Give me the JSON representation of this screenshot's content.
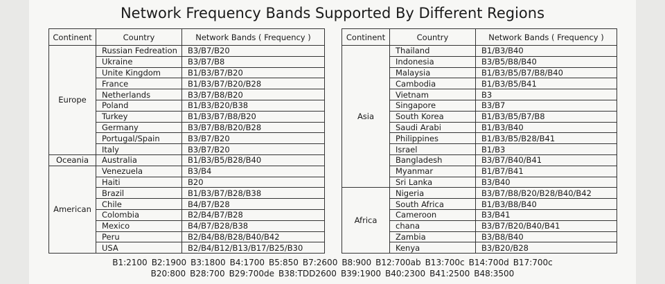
{
  "title": "Network Frequency Bands Supported By Different Regions",
  "tables": [
    {
      "headers": [
        "Continent",
        "Country",
        "Network Bands ( Frequency )"
      ],
      "groups": [
        {
          "continent": "Europe",
          "rows": [
            [
              "Russian Fedreation",
              "B3/B7/B20"
            ],
            [
              "Ukraine",
              "B3/B7/B8"
            ],
            [
              "Unite Kingdom",
              "B1/B3/B7/B20"
            ],
            [
              "France",
              "B1/B3/B7/B20/B28"
            ],
            [
              "Netherlands",
              "B3/B7/B8/B20"
            ],
            [
              "Poland",
              "B1/B3/B20/B38"
            ],
            [
              "Turkey",
              "B1/B3/B7/B8/B20"
            ],
            [
              "Germany",
              "B3/B7/B8/B20/B28"
            ],
            [
              "Portugal/Spain",
              "B3/B7/B20"
            ],
            [
              "Italy",
              "B3/B7/B20"
            ]
          ]
        },
        {
          "continent": "Oceania",
          "rows": [
            [
              "Australia",
              "B1/B3/B5/B28/B40"
            ]
          ]
        },
        {
          "continent": "American",
          "rows": [
            [
              "Venezuela",
              "B3/B4"
            ],
            [
              "Haiti",
              "B20"
            ],
            [
              "Brazil",
              "B1/B3/B7/B28/B38"
            ],
            [
              "Chile",
              "B4/B7/B28"
            ],
            [
              "Colombia",
              "B2/B4/B7/B28"
            ],
            [
              "Mexico",
              "B4/B7/B28/B38"
            ],
            [
              "Peru",
              "B2/B4/B8/B28/B40/B42"
            ],
            [
              "USA",
              "B2/B4/B12/B13/B17/B25/B30"
            ]
          ]
        }
      ]
    },
    {
      "headers": [
        "Continent",
        "Country",
        "Network Bands ( Frequency )"
      ],
      "groups": [
        {
          "continent": "Asia",
          "rows": [
            [
              "Thailand",
              "B1/B3/B40"
            ],
            [
              "Indonesia",
              "B3/B5/B8/B40"
            ],
            [
              "Malaysia",
              "B1/B3/B5/B7/B8/B40"
            ],
            [
              "Cambodia",
              "B1/B3/B5/B41"
            ],
            [
              "Vietnam",
              "B3"
            ],
            [
              "Singapore",
              "B3/B7"
            ],
            [
              "South Korea",
              "B1/B3/B5/B7/B8"
            ],
            [
              "Saudi Arabi",
              "B1/B3/B40"
            ],
            [
              "Philippines",
              "B1/B3/B5/B28/B41"
            ],
            [
              "Israel",
              "B1/B3"
            ],
            [
              "Bangladesh",
              "B3/B7/B40/B41"
            ],
            [
              "Myanmar",
              "B1/B7/B41"
            ],
            [
              "Sri Lanka",
              "B3/B40"
            ]
          ]
        },
        {
          "continent": "Africa",
          "rows": [
            [
              "Nigeria",
              "B3/B7/B8/B20/B28/B40/B42"
            ],
            [
              "South Africa",
              "B1/B3/B8/B40"
            ],
            [
              "Cameroon",
              "B3/B41"
            ],
            [
              "chana",
              "B3/B7/B20/B40/B41"
            ],
            [
              "Zambia",
              "B3/B8/B40"
            ],
            [
              "Kenya",
              "B3/B20/B28"
            ]
          ]
        }
      ]
    }
  ],
  "legend": [
    [
      "B1:2100",
      "B2:1900",
      "B3:1800",
      "B4:1700",
      "B5:850",
      "B7:2600",
      "B8:900",
      "B12:700ab",
      "B13:700c",
      "B14:700d",
      "B17:700c"
    ],
    [
      "B20:800",
      "B28:700",
      "B29:700de",
      "B38:TDD2600",
      "B39:1900",
      "B40:2300",
      "B41:2500",
      "B48:3500"
    ]
  ]
}
